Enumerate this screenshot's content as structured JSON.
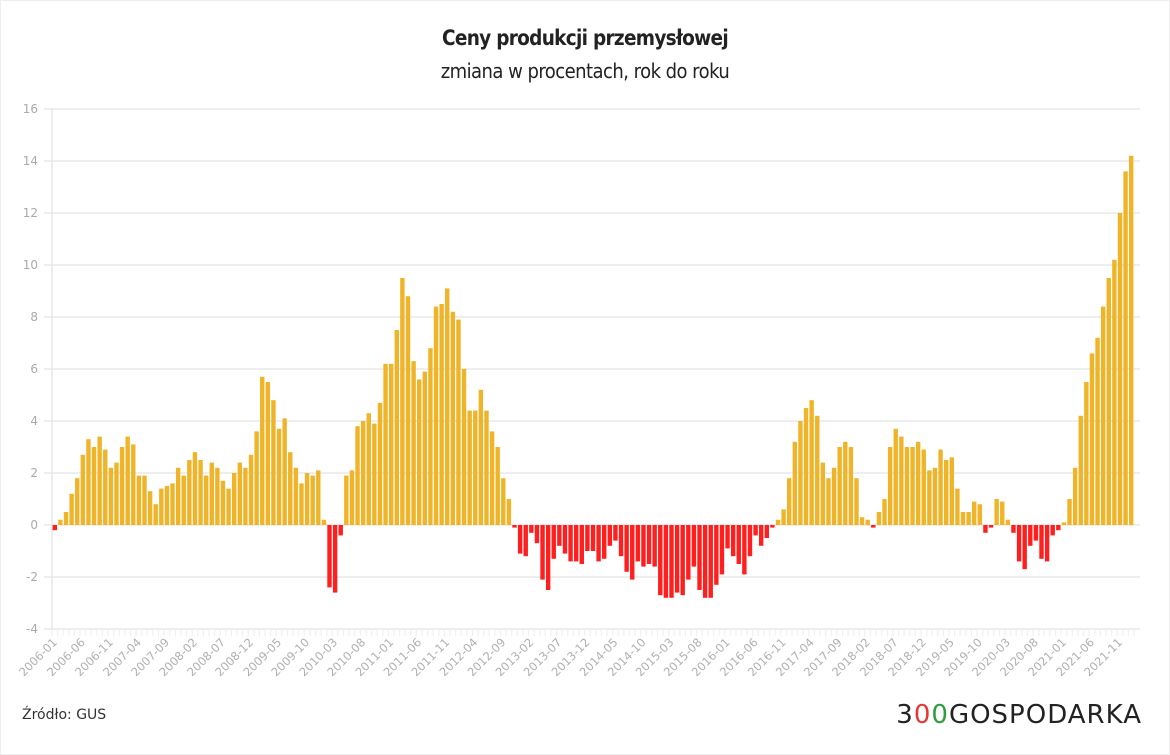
{
  "title": "Ceny produkcji przemysłowej",
  "subtitle": "zmiana w procentach, rok do roku",
  "source": "Źródło: GUS",
  "logo": {
    "part1": "3",
    "part2": "0",
    "part3": "0",
    "part4": "GOSPODARKA"
  },
  "colors": {
    "positive": "#F0B429",
    "negative": "#FF1F1F",
    "grid": "#e8e8e8",
    "tick": "#aaaaaa"
  },
  "chart_data": {
    "type": "bar",
    "title": "Ceny produkcji przemysłowej",
    "subtitle": "zmiana w procentach, rok do roku",
    "xlabel": "",
    "ylabel": "",
    "ylim": [
      -4,
      16
    ],
    "yticks": [
      -4,
      -2,
      0,
      2,
      4,
      6,
      8,
      10,
      12,
      14,
      16
    ],
    "grid": true,
    "legend": "none",
    "start": "2006-01",
    "xtick_labels": [
      "2006-01",
      "2006-06",
      "2006-11",
      "2007-04",
      "2007-09",
      "2008-02",
      "2008-07",
      "2008-12",
      "2009-05",
      "2009-10",
      "2010-03",
      "2010-08",
      "2011-01",
      "2011-06",
      "2011-11",
      "2012-04",
      "2012-09",
      "2013-02",
      "2013-07",
      "2013-12",
      "2014-05",
      "2014-10",
      "2015-03",
      "2015-08",
      "2016-01",
      "2016-06",
      "2016-11",
      "2017-04",
      "2017-09",
      "2018-02",
      "2018-07",
      "2018-12",
      "2019-05",
      "2019-10",
      "2020-03",
      "2020-08",
      "2021-01",
      "2021-06",
      "2021-11"
    ],
    "values": [
      -0.2,
      0.2,
      0.5,
      1.2,
      1.8,
      2.7,
      3.3,
      3.0,
      3.4,
      2.9,
      2.2,
      2.4,
      3.0,
      3.4,
      3.1,
      1.9,
      1.9,
      1.3,
      0.8,
      1.4,
      1.5,
      1.6,
      2.2,
      1.9,
      2.5,
      2.8,
      2.5,
      1.9,
      2.4,
      2.2,
      1.7,
      1.4,
      2.0,
      2.4,
      2.2,
      2.7,
      3.6,
      5.7,
      5.5,
      4.8,
      3.7,
      4.1,
      2.8,
      2.2,
      1.6,
      2.0,
      1.9,
      2.1,
      0.2,
      -2.4,
      -2.6,
      -0.4,
      1.9,
      2.1,
      3.8,
      4.0,
      4.3,
      3.9,
      4.7,
      6.2,
      6.2,
      7.5,
      9.5,
      8.8,
      6.3,
      5.6,
      5.9,
      6.8,
      8.4,
      8.5,
      9.1,
      8.2,
      7.9,
      6.0,
      4.4,
      4.4,
      5.2,
      4.4,
      3.6,
      3.0,
      1.8,
      1.0,
      -0.1,
      -1.1,
      -1.2,
      -0.3,
      -0.7,
      -2.1,
      -2.5,
      -1.3,
      -0.8,
      -1.1,
      -1.4,
      -1.4,
      -1.5,
      -1.0,
      -1.0,
      -1.4,
      -1.3,
      -0.8,
      -0.6,
      -1.2,
      -1.8,
      -2.1,
      -1.4,
      -1.6,
      -1.5,
      -1.6,
      -2.7,
      -2.8,
      -2.8,
      -2.6,
      -2.7,
      -2.1,
      -1.6,
      -2.5,
      -2.8,
      -2.8,
      -2.3,
      -1.9,
      -0.9,
      -1.2,
      -1.5,
      -1.9,
      -1.2,
      -0.4,
      -0.8,
      -0.5,
      -0.1,
      0.2,
      0.6,
      1.8,
      3.2,
      4.0,
      4.5,
      4.8,
      4.2,
      2.4,
      1.8,
      2.2,
      3.0,
      3.2,
      3.0,
      1.8,
      0.3,
      0.2,
      -0.1,
      0.5,
      1.0,
      3.0,
      3.7,
      3.4,
      3.0,
      3.0,
      3.2,
      2.9,
      2.1,
      2.2,
      2.9,
      2.5,
      2.6,
      1.4,
      0.5,
      0.5,
      0.9,
      0.8,
      -0.3,
      -0.1,
      1.0,
      0.9,
      0.2,
      -0.3,
      -1.4,
      -1.7,
      -0.8,
      -0.6,
      -1.3,
      -1.4,
      -0.4,
      -0.2,
      0.1,
      1.0,
      2.2,
      4.2,
      5.5,
      6.6,
      7.2,
      8.4,
      9.5,
      10.2,
      12.0,
      13.6,
      14.2
    ]
  }
}
